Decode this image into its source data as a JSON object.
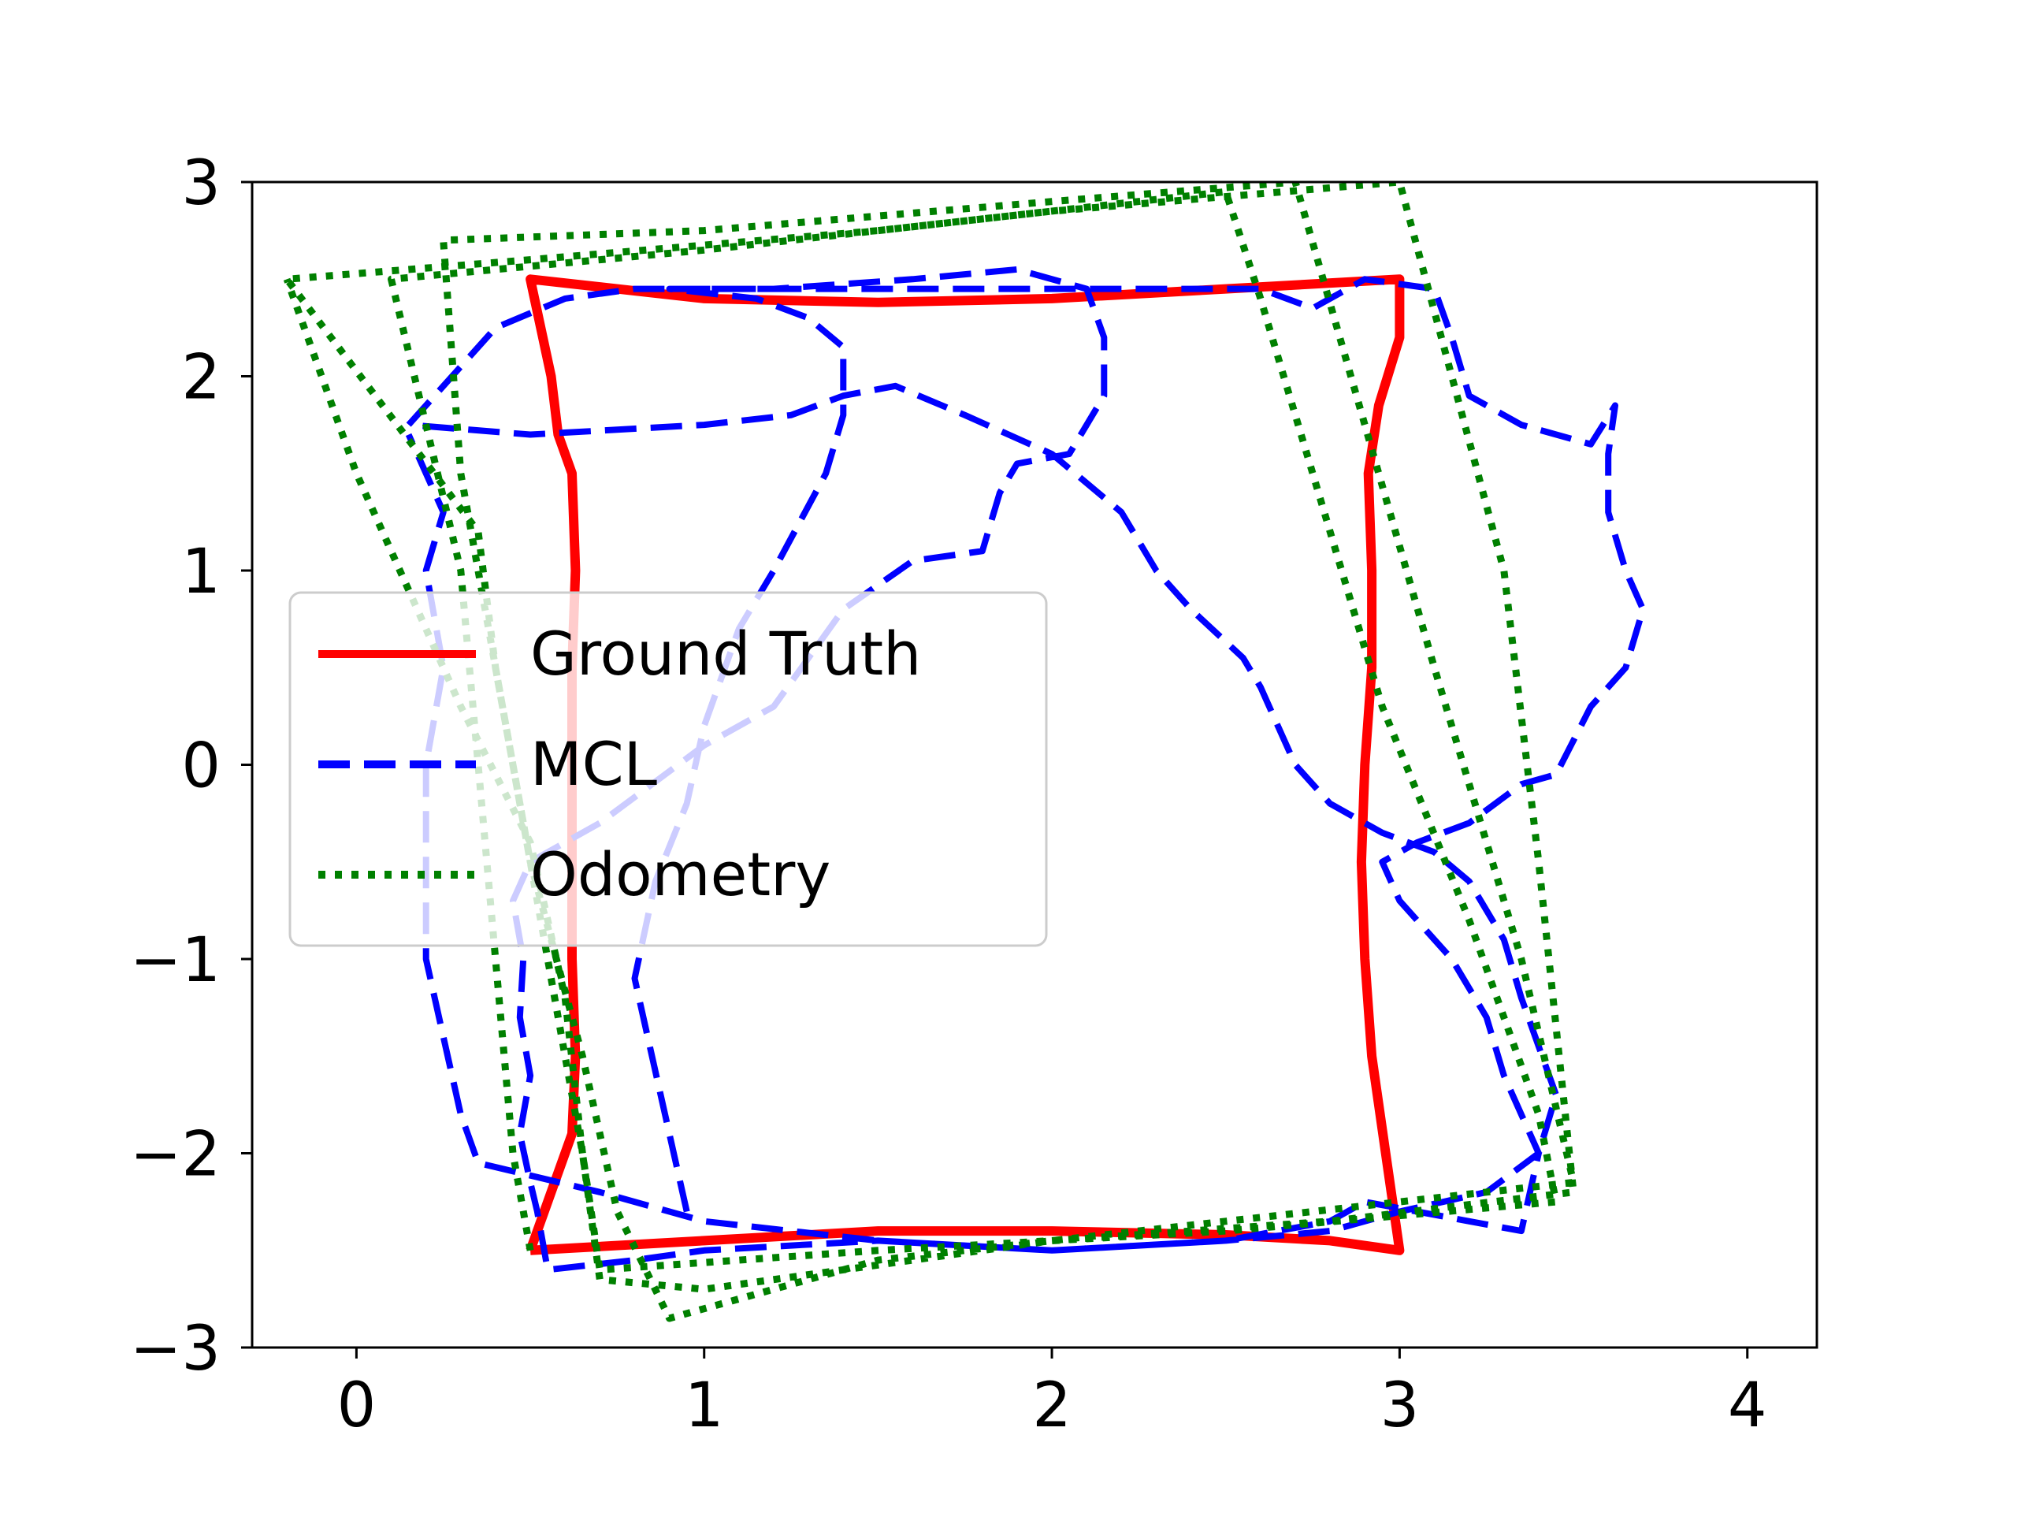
{
  "chart_data": {
    "type": "line",
    "title": "",
    "xlabel": "",
    "ylabel": "",
    "xlim": [
      -0.3,
      4.2
    ],
    "ylim": [
      -3,
      3
    ],
    "x_ticks": [
      0,
      1,
      2,
      3,
      4
    ],
    "y_ticks": [
      3,
      2,
      1,
      0,
      -1,
      -2,
      -3
    ],
    "x_tick_labels": [
      "0",
      "1",
      "2",
      "3",
      "4"
    ],
    "y_tick_labels": [
      "3",
      "2",
      "1",
      "0",
      "−1",
      "−2",
      "−3"
    ],
    "grid": false,
    "legend_position": "center-left",
    "series": [
      {
        "name": "Ground Truth",
        "color": "#ff0000",
        "style": "solid",
        "points": [
          [
            0.5,
            -2.5
          ],
          [
            1.0,
            -2.45
          ],
          [
            1.5,
            -2.4
          ],
          [
            2.0,
            -2.4
          ],
          [
            2.5,
            -2.42
          ],
          [
            2.8,
            -2.45
          ],
          [
            3.0,
            -2.5
          ],
          [
            2.96,
            -2.0
          ],
          [
            2.92,
            -1.5
          ],
          [
            2.9,
            -1.0
          ],
          [
            2.89,
            -0.5
          ],
          [
            2.9,
            0.0
          ],
          [
            2.92,
            0.5
          ],
          [
            2.92,
            1.0
          ],
          [
            2.91,
            1.5
          ],
          [
            2.94,
            1.85
          ],
          [
            3.0,
            2.2
          ],
          [
            3.0,
            2.5
          ],
          [
            2.5,
            2.45
          ],
          [
            2.0,
            2.4
          ],
          [
            1.5,
            2.38
          ],
          [
            1.0,
            2.4
          ],
          [
            0.5,
            2.5
          ],
          [
            0.56,
            2.0
          ],
          [
            0.58,
            1.7
          ],
          [
            0.62,
            1.5
          ],
          [
            0.63,
            1.0
          ],
          [
            0.62,
            0.5
          ],
          [
            0.62,
            0.0
          ],
          [
            0.62,
            -0.5
          ],
          [
            0.62,
            -1.0
          ],
          [
            0.63,
            -1.5
          ],
          [
            0.62,
            -1.9
          ],
          [
            0.5,
            -2.5
          ]
        ]
      },
      {
        "name": "MCL",
        "color": "#0000ff",
        "style": "dashed",
        "points": [
          [
            0.95,
            -2.3
          ],
          [
            0.9,
            -1.9
          ],
          [
            0.85,
            -1.5
          ],
          [
            0.8,
            -1.1
          ],
          [
            0.86,
            -0.6
          ],
          [
            0.95,
            -0.2
          ],
          [
            1.0,
            0.2
          ],
          [
            1.1,
            0.7
          ],
          [
            1.2,
            1.0
          ],
          [
            1.35,
            1.5
          ],
          [
            1.4,
            1.8
          ],
          [
            1.4,
            2.15
          ],
          [
            1.3,
            2.3
          ],
          [
            1.15,
            2.4
          ],
          [
            0.9,
            2.45
          ],
          [
            1.2,
            2.45
          ],
          [
            1.6,
            2.5
          ],
          [
            1.9,
            2.55
          ],
          [
            2.1,
            2.45
          ],
          [
            2.15,
            2.2
          ],
          [
            2.15,
            1.9
          ],
          [
            2.05,
            1.6
          ],
          [
            1.9,
            1.55
          ],
          [
            1.85,
            1.4
          ],
          [
            1.8,
            1.1
          ],
          [
            1.6,
            1.05
          ],
          [
            1.4,
            0.8
          ],
          [
            1.2,
            0.3
          ],
          [
            1.0,
            0.1
          ],
          [
            0.85,
            -0.1
          ],
          [
            0.7,
            -0.3
          ],
          [
            0.5,
            -0.5
          ],
          [
            0.45,
            -0.7
          ],
          [
            0.48,
            -1.0
          ],
          [
            0.47,
            -1.3
          ],
          [
            0.5,
            -1.6
          ],
          [
            0.47,
            -1.9
          ],
          [
            0.5,
            -2.15
          ],
          [
            0.52,
            -2.3
          ],
          [
            0.55,
            -2.6
          ],
          [
            0.8,
            -2.55
          ],
          [
            1.0,
            -2.5
          ],
          [
            1.5,
            -2.45
          ],
          [
            2.0,
            -2.5
          ],
          [
            2.5,
            -2.45
          ],
          [
            2.8,
            -2.35
          ],
          [
            2.9,
            -2.25
          ],
          [
            3.2,
            -2.35
          ],
          [
            3.35,
            -2.4
          ],
          [
            3.4,
            -2.0
          ],
          [
            3.3,
            -1.6
          ],
          [
            3.25,
            -1.3
          ],
          [
            3.15,
            -1.0
          ],
          [
            3.0,
            -0.7
          ],
          [
            2.95,
            -0.5
          ],
          [
            3.05,
            -0.4
          ],
          [
            3.2,
            -0.3
          ],
          [
            3.35,
            -0.1
          ],
          [
            3.45,
            -0.05
          ],
          [
            3.55,
            0.3
          ],
          [
            3.65,
            0.5
          ],
          [
            3.7,
            0.8
          ],
          [
            3.65,
            1.0
          ],
          [
            3.6,
            1.3
          ],
          [
            3.6,
            1.6
          ],
          [
            3.62,
            1.85
          ],
          [
            3.55,
            1.65
          ],
          [
            3.35,
            1.75
          ],
          [
            3.2,
            1.9
          ],
          [
            3.15,
            2.2
          ],
          [
            3.1,
            2.45
          ],
          [
            2.9,
            2.5
          ],
          [
            2.75,
            2.35
          ],
          [
            2.6,
            2.45
          ],
          [
            2.3,
            2.45
          ],
          [
            2.1,
            2.45
          ],
          [
            1.6,
            2.45
          ],
          [
            1.1,
            2.45
          ],
          [
            0.8,
            2.45
          ],
          [
            0.6,
            2.4
          ],
          [
            0.4,
            2.25
          ],
          [
            0.3,
            2.05
          ],
          [
            0.15,
            1.75
          ],
          [
            0.5,
            1.7
          ],
          [
            1.0,
            1.75
          ],
          [
            1.25,
            1.8
          ],
          [
            1.4,
            1.9
          ],
          [
            1.55,
            1.95
          ],
          [
            1.75,
            1.8
          ],
          [
            2.0,
            1.6
          ],
          [
            2.2,
            1.3
          ],
          [
            2.3,
            1.0
          ],
          [
            2.4,
            0.8
          ],
          [
            2.55,
            0.55
          ],
          [
            2.6,
            0.4
          ],
          [
            2.65,
            0.2
          ],
          [
            2.7,
            0.0
          ],
          [
            2.8,
            -0.2
          ],
          [
            2.95,
            -0.35
          ],
          [
            3.1,
            -0.45
          ],
          [
            3.2,
            -0.6
          ],
          [
            3.3,
            -0.9
          ],
          [
            3.35,
            -1.2
          ],
          [
            3.4,
            -1.45
          ],
          [
            3.45,
            -1.7
          ],
          [
            3.4,
            -2.0
          ],
          [
            3.25,
            -2.2
          ],
          [
            3.0,
            -2.3
          ],
          [
            2.8,
            -2.4
          ],
          [
            2.5,
            -2.45
          ],
          [
            2.0,
            -2.5
          ],
          [
            1.5,
            -2.45
          ],
          [
            1.0,
            -2.35
          ],
          [
            0.7,
            -2.2
          ],
          [
            0.35,
            -2.05
          ],
          [
            0.3,
            -1.8
          ],
          [
            0.25,
            -1.4
          ],
          [
            0.2,
            -1.0
          ],
          [
            0.2,
            -0.5
          ],
          [
            0.2,
            0.0
          ],
          [
            0.25,
            0.5
          ],
          [
            0.2,
            1.0
          ],
          [
            0.25,
            1.3
          ],
          [
            0.15,
            1.7
          ]
        ]
      },
      {
        "name": "Odometry",
        "color": "#008000",
        "style": "dotted",
        "points": [
          [
            0.5,
            -2.5
          ],
          [
            0.45,
            -2.0
          ],
          [
            0.4,
            -1.0
          ],
          [
            0.35,
            0.0
          ],
          [
            0.3,
            1.0
          ],
          [
            0.1,
            2.5
          ],
          [
            1.0,
            2.65
          ],
          [
            2.0,
            2.85
          ],
          [
            3.0,
            3.0
          ],
          [
            3.3,
            1.0
          ],
          [
            3.4,
            -0.5
          ],
          [
            3.5,
            -2.2
          ],
          [
            2.8,
            -2.35
          ],
          [
            2.0,
            -2.45
          ],
          [
            1.0,
            -2.7
          ],
          [
            0.7,
            -2.65
          ],
          [
            0.65,
            -2.0
          ],
          [
            0.55,
            -1.0
          ],
          [
            0.45,
            0.0
          ],
          [
            0.3,
            1.5
          ],
          [
            0.25,
            2.7
          ],
          [
            1.0,
            2.75
          ],
          [
            2.0,
            2.9
          ],
          [
            2.7,
            3.0
          ],
          [
            3.1,
            0.5
          ],
          [
            3.35,
            -1.0
          ],
          [
            3.5,
            -2.15
          ],
          [
            2.5,
            -2.35
          ],
          [
            1.5,
            -2.55
          ],
          [
            0.9,
            -2.85
          ],
          [
            0.75,
            -2.3
          ],
          [
            0.65,
            -1.5
          ],
          [
            0.5,
            -0.5
          ],
          [
            0.4,
            0.5
          ],
          [
            0.35,
            1.2
          ],
          [
            -0.2,
            2.5
          ],
          [
            0.5,
            2.6
          ],
          [
            1.5,
            2.75
          ],
          [
            2.5,
            2.95
          ],
          [
            2.6,
            2.4
          ],
          [
            2.75,
            1.5
          ],
          [
            2.95,
            0.3
          ],
          [
            3.2,
            -0.8
          ],
          [
            3.4,
            -1.8
          ],
          [
            3.45,
            -2.25
          ],
          [
            2.5,
            -2.4
          ],
          [
            1.5,
            -2.5
          ],
          [
            0.7,
            -2.6
          ],
          [
            0.65,
            -2.0
          ],
          [
            0.6,
            -1.2
          ],
          [
            0.5,
            -0.4
          ],
          [
            0.3,
            0.3
          ],
          [
            0.0,
            1.5
          ],
          [
            -0.2,
            2.5
          ]
        ]
      }
    ]
  }
}
